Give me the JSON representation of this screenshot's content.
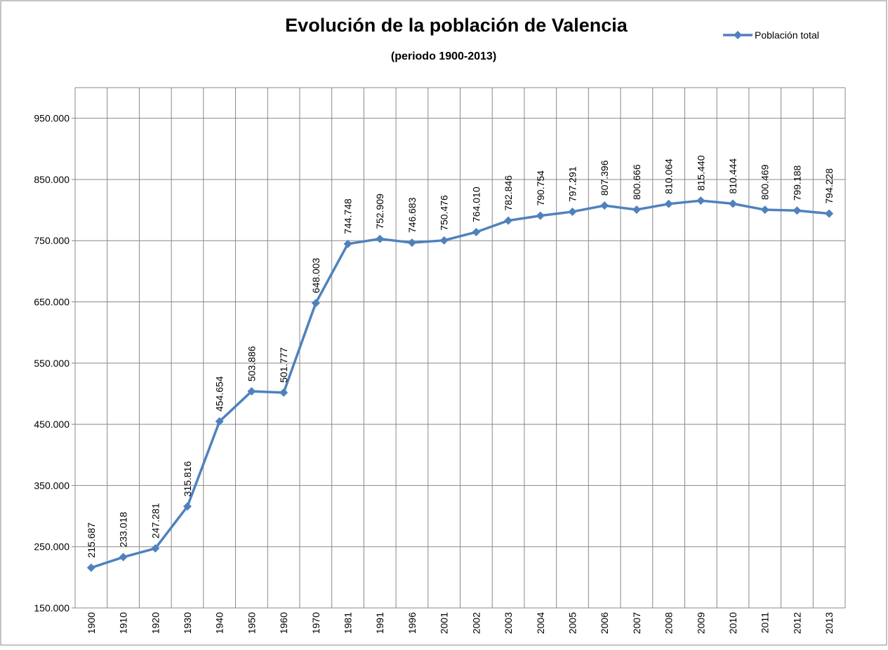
{
  "chart_data": {
    "type": "line",
    "title": "Evolución de la población de Valencia",
    "subtitle": "(periodo 1900-2013)",
    "categories": [
      "1900",
      "1910",
      "1920",
      "1930",
      "1940",
      "1950",
      "1960",
      "1970",
      "1981",
      "1991",
      "1996",
      "2001",
      "2002",
      "2003",
      "2004",
      "2005",
      "2006",
      "2007",
      "2008",
      "2009",
      "2010",
      "2011",
      "2012",
      "2013"
    ],
    "series": [
      {
        "name": "Población total",
        "color": "#4f81bd",
        "values": [
          215687,
          233018,
          247281,
          315816,
          454654,
          503886,
          501777,
          648003,
          744748,
          752909,
          746683,
          750476,
          764010,
          782846,
          790754,
          797291,
          807396,
          800666,
          810064,
          815440,
          810444,
          800469,
          799188,
          794228
        ],
        "value_labels": [
          "215.687",
          "233.018",
          "247.281",
          "315.816",
          "454.654",
          "503.886",
          "501.777",
          "648.003",
          "744.748",
          "752.909",
          "746.683",
          "750.476",
          "764.010",
          "782.846",
          "790.754",
          "797.291",
          "807.396",
          "800.666",
          "810.064",
          "815.440",
          "810.444",
          "800.469",
          "799.188",
          "794.228"
        ]
      }
    ],
    "ylim": [
      150000,
      1000000
    ],
    "yticks": [
      {
        "value": 150000,
        "label": "150.000"
      },
      {
        "value": 250000,
        "label": "250.000"
      },
      {
        "value": 350000,
        "label": "350.000"
      },
      {
        "value": 450000,
        "label": "450.000"
      },
      {
        "value": 550000,
        "label": "550.000"
      },
      {
        "value": 650000,
        "label": "650.000"
      },
      {
        "value": 750000,
        "label": "750.000"
      },
      {
        "value": 850000,
        "label": "850.000"
      },
      {
        "value": 950000,
        "label": "950.000"
      }
    ],
    "grid": true,
    "legend": "top-right"
  }
}
